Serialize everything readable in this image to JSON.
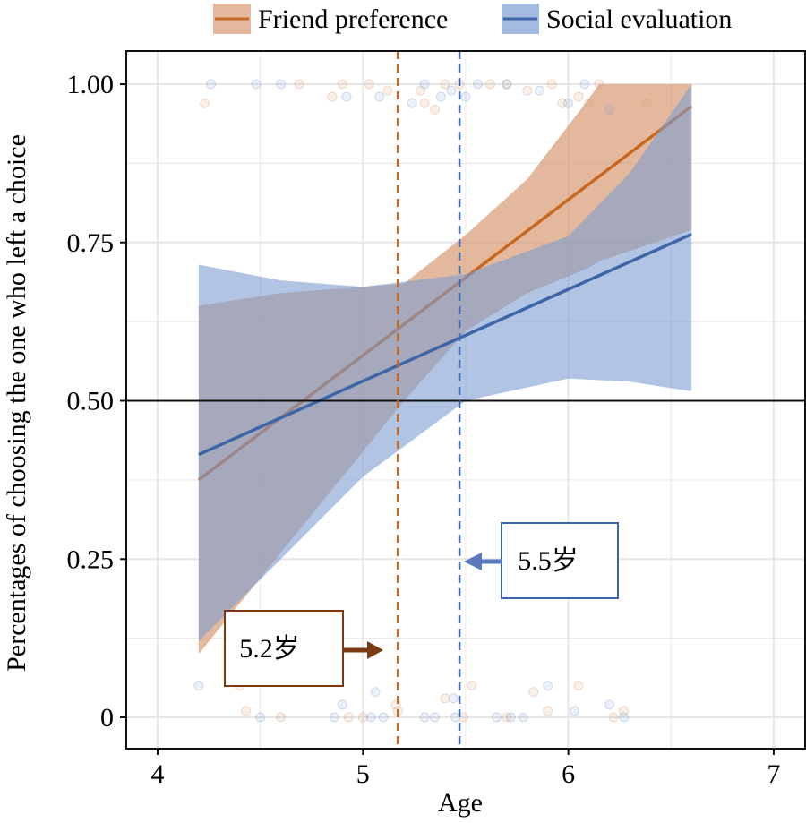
{
  "chart_data": {
    "type": "line",
    "xlabel": "Age",
    "ylabel": "Percentages of choosing the one who left a choice",
    "xlim": [
      3.85,
      7.15
    ],
    "ylim": [
      -0.05,
      1.05
    ],
    "xticks": [
      "4",
      "5",
      "6",
      "7"
    ],
    "yticks": [
      "0",
      "0.25",
      "0.50",
      "0.75",
      "1.00"
    ],
    "ytick_values": [
      0,
      0.25,
      0.5,
      0.75,
      1.0
    ],
    "xtick_values": [
      4,
      5,
      6,
      7
    ],
    "grid": true,
    "legend_position": "top",
    "reference_line_y": 0.5,
    "series": [
      {
        "name": "Friend preference",
        "color": "#c8671f",
        "band_color": "#d99a72",
        "x": [
          4.2,
          6.6
        ],
        "y": [
          0.375,
          0.965
        ],
        "ci_x": [
          4.2,
          4.6,
          5.0,
          5.2,
          5.5,
          5.8,
          6.1,
          6.15,
          6.6
        ],
        "ci_upper": [
          0.65,
          0.67,
          0.68,
          0.685,
          0.762,
          0.85,
          0.977,
          1.0,
          1.0
        ],
        "ci_lower": [
          0.1,
          0.26,
          0.42,
          0.5,
          0.61,
          0.67,
          0.71,
          0.72,
          0.77
        ],
        "threshold_age": 5.17
      },
      {
        "name": "Social evaluation",
        "color": "#3d66a8",
        "band_color": "#7d9dd0",
        "x": [
          4.2,
          6.6
        ],
        "y": [
          0.415,
          0.763
        ],
        "ci_x": [
          4.2,
          4.6,
          5.0,
          5.5,
          6.0,
          6.3,
          6.6
        ],
        "ci_upper": [
          0.715,
          0.69,
          0.68,
          0.7,
          0.76,
          0.86,
          1.0
        ],
        "ci_lower": [
          0.12,
          0.25,
          0.38,
          0.5,
          0.535,
          0.53,
          0.515
        ],
        "threshold_age": 5.47
      }
    ],
    "points": {
      "Friend preference": [
        [
          4.23,
          0.97
        ],
        [
          4.69,
          1.0
        ],
        [
          4.85,
          0.98
        ],
        [
          4.9,
          1.0
        ],
        [
          5.03,
          1.0
        ],
        [
          5.12,
          0.99
        ],
        [
          5.28,
          0.99
        ],
        [
          5.3,
          0.97
        ],
        [
          5.35,
          0.96
        ],
        [
          5.4,
          1.0
        ],
        [
          5.47,
          1.0
        ],
        [
          5.62,
          1.0
        ],
        [
          5.7,
          1.0
        ],
        [
          5.8,
          0.99
        ],
        [
          5.92,
          1.0
        ],
        [
          5.97,
          0.97
        ],
        [
          6.05,
          0.98
        ],
        [
          6.1,
          0.97
        ],
        [
          6.15,
          1.0
        ],
        [
          6.38,
          0.97
        ],
        [
          4.4,
          0.05
        ],
        [
          4.43,
          0.01
        ],
        [
          4.6,
          0.0
        ],
        [
          4.93,
          0.0
        ],
        [
          5.0,
          0.0
        ],
        [
          5.16,
          0.02
        ],
        [
          5.17,
          0.01
        ],
        [
          5.4,
          0.03
        ],
        [
          5.49,
          0.0
        ],
        [
          5.53,
          0.05
        ],
        [
          5.7,
          0.0
        ],
        [
          5.83,
          0.04
        ],
        [
          5.9,
          0.01
        ],
        [
          6.05,
          0.05
        ],
        [
          6.22,
          0.0
        ],
        [
          6.27,
          0.01
        ]
      ],
      "Social evaluation": [
        [
          4.26,
          1.0
        ],
        [
          4.48,
          1.0
        ],
        [
          4.6,
          1.0
        ],
        [
          4.92,
          0.98
        ],
        [
          5.08,
          0.98
        ],
        [
          5.24,
          0.97
        ],
        [
          5.3,
          1.0
        ],
        [
          5.38,
          0.98
        ],
        [
          5.43,
          0.99
        ],
        [
          5.5,
          0.98
        ],
        [
          5.56,
          1.0
        ],
        [
          5.7,
          1.0
        ],
        [
          5.86,
          0.99
        ],
        [
          6.0,
          0.97
        ],
        [
          6.08,
          1.0
        ],
        [
          6.2,
          0.96
        ],
        [
          4.2,
          0.05
        ],
        [
          4.5,
          0.0
        ],
        [
          4.86,
          0.0
        ],
        [
          4.9,
          0.02
        ],
        [
          5.04,
          0.0
        ],
        [
          5.06,
          0.04
        ],
        [
          5.1,
          0.0
        ],
        [
          5.3,
          0.0
        ],
        [
          5.35,
          0.0
        ],
        [
          5.44,
          0.03
        ],
        [
          5.45,
          0.0
        ],
        [
          5.65,
          0.0
        ],
        [
          5.72,
          0.0
        ],
        [
          5.78,
          0.0
        ],
        [
          5.9,
          0.05
        ],
        [
          6.03,
          0.01
        ],
        [
          6.2,
          0.02
        ],
        [
          6.27,
          0.0
        ]
      ]
    },
    "annotations": [
      {
        "text": "5.2岁",
        "color": "#7a3a12",
        "arrow": "right"
      },
      {
        "text": "5.5岁",
        "color": "#3a66b0",
        "arrow": "left"
      }
    ]
  }
}
